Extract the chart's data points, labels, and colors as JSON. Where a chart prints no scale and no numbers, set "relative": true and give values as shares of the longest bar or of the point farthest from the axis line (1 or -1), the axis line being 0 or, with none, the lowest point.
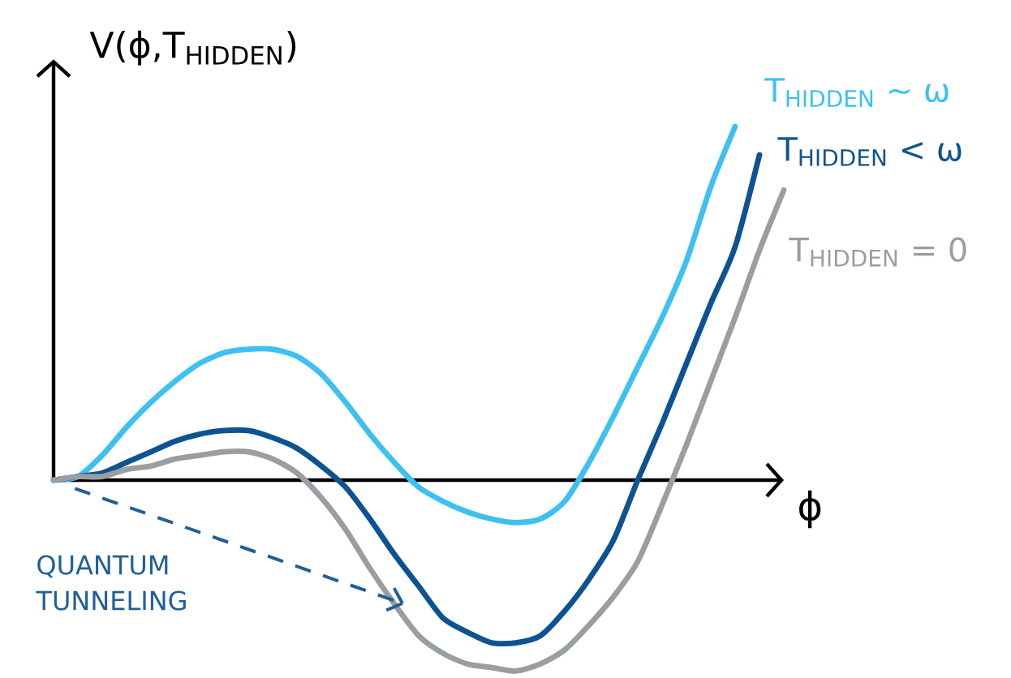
{
  "chart_data": {
    "type": "line",
    "relative": true,
    "xlabel": "ϕ",
    "ylabel": "V(ϕ,T$_{HIDDEN}$)",
    "categories": [
      null,
      null,
      null,
      null,
      null,
      null,
      null,
      null,
      null,
      null,
      null,
      null,
      null,
      null,
      null,
      null,
      null,
      null,
      null,
      null,
      null,
      null,
      null,
      null,
      null,
      null,
      null,
      null,
      null,
      null,
      null
    ],
    "series": [
      {
        "name": "T$_{HIDDEN}$ ~ ω",
        "color": "#3ec0f1",
        "values": [
          0,
          0.01,
          0.07,
          0.15,
          0.22,
          0.28,
          0.33,
          0.36,
          0.37,
          0.37,
          0.35,
          0.3,
          0.22,
          0.13,
          0.05,
          -0.02,
          -0.06,
          -0.09,
          -0.11,
          -0.12,
          -0.11,
          -0.06,
          0.05,
          0.18,
          0.32,
          0.46,
          0.62,
          0.83,
          1.0,
          null,
          null
        ]
      },
      {
        "name": "T$_{HIDDEN}$ < ω",
        "color": "#0e5391",
        "values": [
          0,
          0.01,
          0.02,
          0.05,
          0.08,
          0.11,
          0.13,
          0.14,
          0.14,
          0.12,
          0.09,
          0.04,
          -0.02,
          -0.11,
          -0.21,
          -0.3,
          -0.39,
          -0.43,
          -0.46,
          -0.46,
          -0.44,
          -0.37,
          -0.28,
          -0.17,
          0.0,
          0.16,
          0.33,
          0.5,
          0.66,
          0.92,
          null
        ]
      },
      {
        "name": "T$_{HIDDEN}$ = 0",
        "color": "#999ea3",
        "values": [
          0,
          0.01,
          0.01,
          0.03,
          0.04,
          0.06,
          0.07,
          0.08,
          0.08,
          0.06,
          0.02,
          -0.05,
          -0.14,
          -0.25,
          -0.35,
          -0.44,
          -0.49,
          -0.52,
          -0.53,
          -0.54,
          -0.52,
          -0.48,
          -0.41,
          -0.33,
          -0.23,
          -0.07,
          0.1,
          0.28,
          0.46,
          0.65,
          0.82
        ]
      }
    ],
    "annotations": [
      "QUANTUM TUNNELING"
    ]
  }
}
